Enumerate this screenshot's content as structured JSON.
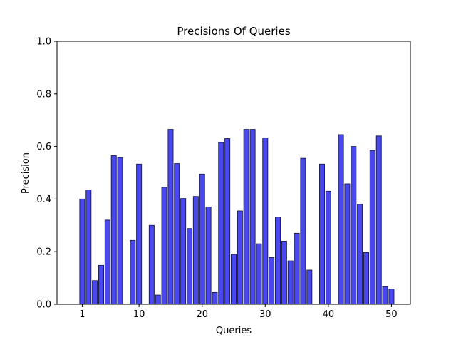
{
  "chart_data": {
    "type": "bar",
    "title": "Precisions Of Queries",
    "xlabel": "Queries",
    "ylabel": "Precision",
    "xlim": [
      -3.0,
      53.0
    ],
    "ylim": [
      0,
      1.0
    ],
    "xticks": [
      1,
      10,
      20,
      30,
      40,
      50
    ],
    "yticks": [
      0.0,
      0.2,
      0.4,
      0.6,
      0.8,
      1.0
    ],
    "ytick_labels": [
      "0.0",
      "0.2",
      "0.4",
      "0.6",
      "0.8",
      "1.0"
    ],
    "bar_color": "#4848ee",
    "edge_color": "#1a1a40",
    "grid": false,
    "legend": "none",
    "x": [
      1,
      2,
      3,
      4,
      5,
      6,
      7,
      8,
      9,
      10,
      11,
      12,
      13,
      14,
      15,
      16,
      17,
      18,
      19,
      20,
      21,
      22,
      23,
      24,
      25,
      26,
      27,
      28,
      29,
      30,
      31,
      32,
      33,
      34,
      35,
      36,
      37,
      38,
      39,
      40,
      41,
      42,
      43,
      44,
      45,
      46,
      47,
      48,
      49,
      50
    ],
    "values": [
      0.4,
      0.435,
      0.09,
      0.148,
      0.32,
      0.565,
      0.558,
      0.0,
      0.243,
      0.533,
      0.0,
      0.3,
      0.035,
      0.445,
      0.665,
      0.535,
      0.402,
      0.288,
      0.41,
      0.495,
      0.37,
      0.045,
      0.615,
      0.63,
      0.19,
      0.355,
      0.665,
      0.665,
      0.23,
      0.633,
      0.178,
      0.332,
      0.24,
      0.165,
      0.27,
      0.555,
      0.13,
      0.0,
      0.533,
      0.43,
      0.0,
      0.645,
      0.458,
      0.6,
      0.38,
      0.197,
      0.585,
      0.64,
      0.067,
      0.058
    ]
  }
}
